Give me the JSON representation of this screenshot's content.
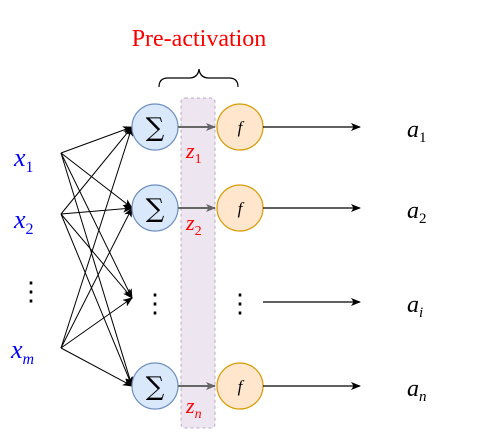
{
  "title": "Pre-activation",
  "inputs": [
    {
      "base": "x",
      "sub": "1"
    },
    {
      "base": "x",
      "sub": "2"
    },
    {
      "base": "x",
      "sub": "m"
    }
  ],
  "input_ellipsis": "⋮",
  "sum_symbol": "∑",
  "activation_symbol": "f",
  "pre_activations": [
    {
      "base": "z",
      "sub": "1"
    },
    {
      "base": "z",
      "sub": "2"
    },
    {
      "base": "z",
      "sub": "n"
    }
  ],
  "outputs": [
    {
      "base": "a",
      "sub": "1"
    },
    {
      "base": "a",
      "sub": "2"
    },
    {
      "base": "a",
      "sub": "i"
    },
    {
      "base": "a",
      "sub": "n"
    }
  ],
  "colors": {
    "title": "#ff0000",
    "input_label": "#0000ff",
    "z_label": "#ff0000",
    "sum_fill": "#dae8fc",
    "sum_stroke": "#6c8ebf",
    "f_fill": "#ffe6cc",
    "f_stroke": "#d79b00",
    "band_fill": "#e1d5e7",
    "band_stroke": "#9673a6",
    "arrow_gray": "#666666",
    "arrow_black": "#000000"
  }
}
